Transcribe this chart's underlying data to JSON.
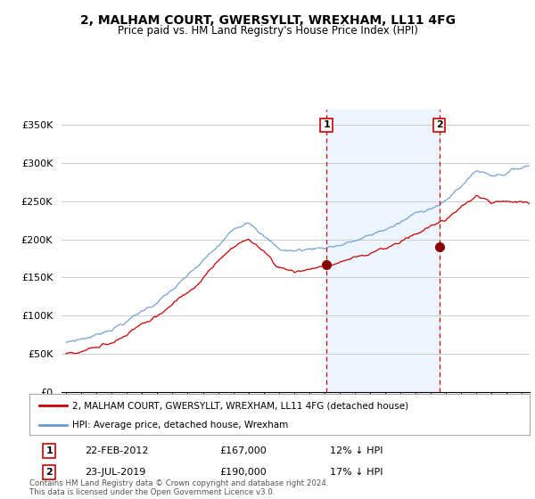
{
  "title": "2, MALHAM COURT, GWERSYLLT, WREXHAM, LL11 4FG",
  "subtitle": "Price paid vs. HM Land Registry's House Price Index (HPI)",
  "ylabel_ticks": [
    "£0",
    "£50K",
    "£100K",
    "£150K",
    "£200K",
    "£250K",
    "£300K",
    "£350K"
  ],
  "ytick_values": [
    0,
    50000,
    100000,
    150000,
    200000,
    250000,
    300000,
    350000
  ],
  "ylim": [
    0,
    370000
  ],
  "xlim_start": 1995.0,
  "xlim_end": 2025.5,
  "purchase1": {
    "date_num": 2012.13,
    "price": 167000,
    "label": "1",
    "date_str": "22-FEB-2012",
    "pct": "12% ↓ HPI"
  },
  "purchase2": {
    "date_num": 2019.55,
    "price": 190000,
    "label": "2",
    "date_str": "23-JUL-2019",
    "pct": "17% ↓ HPI"
  },
  "red_line_color": "#cc0000",
  "blue_line_color": "#6699cc",
  "blue_fill_color": "#ddeeff",
  "vline_color": "#cc0000",
  "grid_color": "#cccccc",
  "background_color": "#ffffff",
  "legend_label_red": "2, MALHAM COURT, GWERSYLLT, WREXHAM, LL11 4FG (detached house)",
  "legend_label_blue": "HPI: Average price, detached house, Wrexham",
  "footer": "Contains HM Land Registry data © Crown copyright and database right 2024.\nThis data is licensed under the Open Government Licence v3.0.",
  "xtick_years": [
    1995,
    1996,
    1997,
    1998,
    1999,
    2000,
    2001,
    2002,
    2003,
    2004,
    2005,
    2006,
    2007,
    2008,
    2009,
    2010,
    2011,
    2012,
    2013,
    2014,
    2015,
    2016,
    2017,
    2018,
    2019,
    2020,
    2021,
    2022,
    2023,
    2024,
    2025
  ]
}
